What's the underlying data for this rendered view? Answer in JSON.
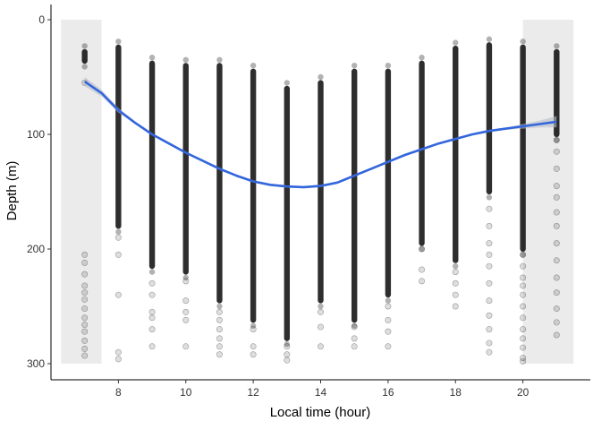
{
  "chart_data": {
    "type": "scatter",
    "xlabel": "Local time (hour)",
    "ylabel": "Depth (m)",
    "xlim": [
      6.0,
      22.0
    ],
    "ylim": [
      0,
      310
    ],
    "y_reversed": true,
    "x_ticks": [
      8,
      10,
      12,
      14,
      16,
      18,
      20
    ],
    "y_ticks": [
      0,
      100,
      200,
      300
    ],
    "grid": false,
    "night_shading": [
      {
        "x_start": 6.3,
        "x_end": 7.5,
        "y_start": 0,
        "y_end": 300
      },
      {
        "x_start": 20.0,
        "x_end": 21.5,
        "y_start": 0,
        "y_end": 300
      }
    ],
    "point_color": "#000000",
    "point_alpha": 0.13,
    "dense_range_color": "#000000",
    "dense_ranges": [
      {
        "x": 7,
        "depth_min": 28,
        "depth_max": 36
      },
      {
        "x": 8,
        "depth_min": 24,
        "depth_max": 180
      },
      {
        "x": 9,
        "depth_min": 38,
        "depth_max": 215
      },
      {
        "x": 10,
        "depth_min": 40,
        "depth_max": 220
      },
      {
        "x": 11,
        "depth_min": 40,
        "depth_max": 245
      },
      {
        "x": 12,
        "depth_min": 45,
        "depth_max": 262
      },
      {
        "x": 13,
        "depth_min": 60,
        "depth_max": 278
      },
      {
        "x": 14,
        "depth_min": 55,
        "depth_max": 245
      },
      {
        "x": 15,
        "depth_min": 45,
        "depth_max": 262
      },
      {
        "x": 16,
        "depth_min": 45,
        "depth_max": 240
      },
      {
        "x": 17,
        "depth_min": 38,
        "depth_max": 195
      },
      {
        "x": 18,
        "depth_min": 25,
        "depth_max": 210
      },
      {
        "x": 19,
        "depth_min": 22,
        "depth_max": 150
      },
      {
        "x": 20,
        "depth_min": 24,
        "depth_max": 200
      },
      {
        "x": 21,
        "depth_min": 28,
        "depth_max": 100
      }
    ],
    "scatter_points": [
      {
        "x": 7,
        "depths": [
          55,
          205,
          212,
          222,
          232,
          238,
          244,
          252,
          260,
          266,
          272,
          280,
          287,
          293
        ]
      },
      {
        "x": 8,
        "depths": [
          190,
          205,
          240,
          290,
          296
        ]
      },
      {
        "x": 9,
        "depths": [
          230,
          240,
          255,
          260,
          270,
          285
        ]
      },
      {
        "x": 10,
        "depths": [
          228,
          245,
          255,
          262,
          285
        ]
      },
      {
        "x": 11,
        "depths": [
          255,
          262,
          270,
          278,
          285,
          292
        ]
      },
      {
        "x": 12,
        "depths": [
          270,
          285,
          292
        ]
      },
      {
        "x": 13,
        "depths": [
          285,
          292,
          297
        ]
      },
      {
        "x": 14,
        "depths": [
          255,
          268,
          285
        ]
      },
      {
        "x": 15,
        "depths": [
          268,
          278,
          285
        ]
      },
      {
        "x": 16,
        "depths": [
          250,
          262,
          272,
          285
        ]
      },
      {
        "x": 17,
        "depths": [
          200,
          218,
          228
        ]
      },
      {
        "x": 18,
        "depths": [
          220,
          230,
          240,
          250
        ]
      },
      {
        "x": 19,
        "depths": [
          165,
          180,
          195,
          205,
          215,
          230,
          245,
          258,
          270,
          282,
          290
        ]
      },
      {
        "x": 20,
        "depths": [
          205,
          215,
          225,
          232,
          240,
          250,
          260,
          270,
          278,
          286,
          295,
          298
        ]
      },
      {
        "x": 21,
        "depths": [
          105,
          115,
          130,
          145,
          155,
          168,
          180,
          195,
          210,
          225,
          238,
          252,
          264,
          275
        ]
      }
    ],
    "smooth_line": {
      "color": "#3366dd",
      "band_color": "#b8bcc8",
      "x": [
        7.0,
        7.5,
        8.0,
        8.5,
        9.0,
        9.5,
        10.0,
        10.5,
        11.0,
        11.5,
        12.0,
        12.5,
        13.0,
        13.5,
        14.0,
        14.5,
        15.0,
        15.5,
        16.0,
        16.5,
        17.0,
        17.5,
        18.0,
        18.5,
        19.0,
        19.5,
        20.0,
        20.5,
        21.0
      ],
      "y": [
        54,
        64,
        79,
        90,
        100,
        108,
        116,
        123,
        130,
        136,
        141,
        144,
        145.5,
        146,
        145,
        142,
        136,
        130,
        124,
        118,
        113,
        108,
        104,
        100,
        97,
        95,
        93,
        91,
        89
      ],
      "lower": [
        50,
        61,
        77,
        89,
        99,
        107,
        115,
        122,
        129,
        135,
        140,
        143,
        144.5,
        145,
        144,
        141,
        135,
        129,
        123,
        117,
        112,
        107,
        103,
        99,
        96,
        94,
        91,
        88,
        84
      ],
      "upper": [
        58,
        67,
        81,
        91,
        101,
        109,
        117,
        124,
        131,
        137,
        142,
        145,
        146.5,
        147,
        146,
        143,
        137,
        131,
        125,
        119,
        114,
        109,
        105,
        101,
        98,
        96,
        95,
        94,
        94
      ]
    }
  }
}
